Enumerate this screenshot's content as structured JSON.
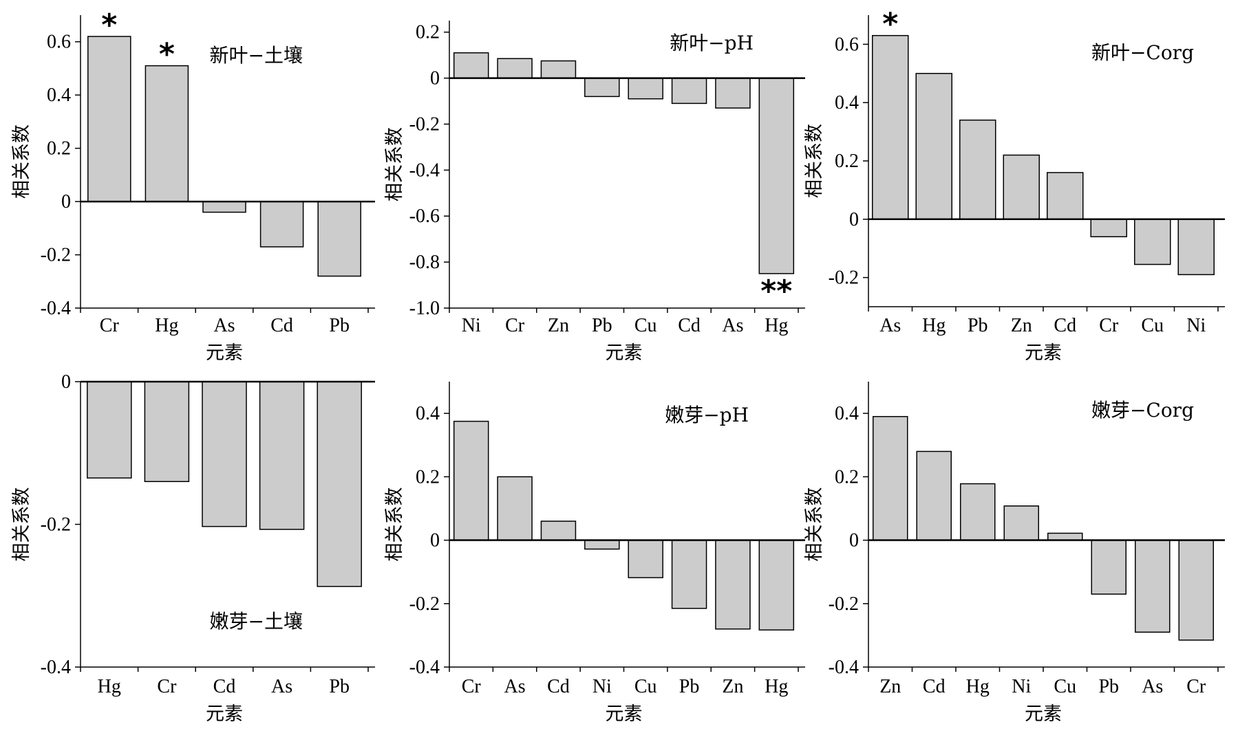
{
  "chart_data": [
    {
      "type": "bar",
      "title": "新叶−土壤",
      "xlabel": "元素",
      "ylabel": "相关系数",
      "categories": [
        "Cr",
        "Hg",
        "As",
        "Cd",
        "Pb"
      ],
      "values": [
        0.62,
        0.51,
        -0.04,
        -0.17,
        -0.28
      ],
      "significance": [
        "*",
        "*",
        "",
        "",
        ""
      ],
      "ylim": [
        -0.4,
        0.7
      ],
      "yticks": [
        -0.4,
        -0.2,
        0,
        0.2,
        0.4,
        0.6
      ],
      "ytick_labels": [
        "-0.4",
        "-0.2",
        "0",
        "0.2",
        "0.4",
        "0.6"
      ],
      "title_position": "top-right",
      "bar_color": "#cccccc",
      "grid": false
    },
    {
      "type": "bar",
      "title": "新叶−pH",
      "xlabel": "元素",
      "ylabel": "相关系数",
      "categories": [
        "Ni",
        "Cr",
        "Zn",
        "Pb",
        "Cu",
        "Cd",
        "As",
        "Hg"
      ],
      "values": [
        0.11,
        0.085,
        0.075,
        -0.08,
        -0.09,
        -0.11,
        -0.13,
        -0.85
      ],
      "significance": [
        "",
        "",
        "",
        "",
        "",
        "",
        "",
        "**"
      ],
      "ylim": [
        -1.0,
        0.25
      ],
      "yticks": [
        -1.0,
        -0.8,
        -0.6,
        -0.4,
        -0.2,
        0,
        0.2
      ],
      "ytick_labels": [
        "-1.0",
        "-0.8",
        "-0.6",
        "-0.4",
        "-0.2",
        "0",
        "0.2"
      ],
      "title_position": "top-right",
      "bar_color": "#cccccc",
      "grid": false
    },
    {
      "type": "bar",
      "title": "新叶−Corg",
      "xlabel": "元素",
      "ylabel": "相关系数",
      "categories": [
        "As",
        "Hg",
        "Pb",
        "Zn",
        "Cd",
        "Cr",
        "Cu",
        "Ni"
      ],
      "values": [
        0.63,
        0.5,
        0.34,
        0.22,
        0.16,
        -0.06,
        -0.155,
        -0.19
      ],
      "significance": [
        "*",
        "",
        "",
        "",
        "",
        "",
        "",
        ""
      ],
      "ylim": [
        -0.3,
        0.7
      ],
      "yticks": [
        -0.2,
        0,
        0.2,
        0.4,
        0.6
      ],
      "ytick_labels": [
        "-0.2",
        "0",
        "0.2",
        "0.4",
        "0.6"
      ],
      "title_position": "top-right",
      "bar_color": "#cccccc",
      "grid": false
    },
    {
      "type": "bar",
      "title": "嫩芽−土壤",
      "xlabel": "元素",
      "ylabel": "相关系数",
      "categories": [
        "Hg",
        "Cr",
        "Cd",
        "As",
        "Pb"
      ],
      "values": [
        -0.135,
        -0.14,
        -0.203,
        -0.207,
        -0.287
      ],
      "significance": [
        "",
        "",
        "",
        "",
        ""
      ],
      "ylim": [
        -0.4,
        0
      ],
      "yticks": [
        -0.4,
        -0.2,
        0
      ],
      "ytick_labels": [
        "-0.4",
        "-0.2",
        "0"
      ],
      "title_position": "bottom-right",
      "bar_color": "#cccccc",
      "grid": false
    },
    {
      "type": "bar",
      "title": "嫩芽−pH",
      "xlabel": "元素",
      "ylabel": "相关系数",
      "categories": [
        "Cr",
        "As",
        "Cd",
        "Ni",
        "Cu",
        "Pb",
        "Zn",
        "Hg"
      ],
      "values": [
        0.375,
        0.2,
        0.06,
        -0.028,
        -0.118,
        -0.215,
        -0.28,
        -0.283
      ],
      "significance": [
        "",
        "",
        "",
        "",
        "",
        "",
        "",
        ""
      ],
      "ylim": [
        -0.4,
        0.5
      ],
      "yticks": [
        -0.4,
        -0.2,
        0,
        0.2,
        0.4
      ],
      "ytick_labels": [
        "-0.4",
        "-0.2",
        "0",
        "0.2",
        "0.4"
      ],
      "title_position": "top-right",
      "bar_color": "#cccccc",
      "grid": false
    },
    {
      "type": "bar",
      "title": "嫩芽−Corg",
      "xlabel": "元素",
      "ylabel": "相关系数",
      "categories": [
        "Zn",
        "Cd",
        "Hg",
        "Ni",
        "Cu",
        "Pb",
        "As",
        "Cr"
      ],
      "values": [
        0.39,
        0.28,
        0.178,
        0.108,
        0.022,
        -0.17,
        -0.29,
        -0.315
      ],
      "significance": [
        "",
        "",
        "",
        "",
        "",
        "",
        "",
        ""
      ],
      "ylim": [
        -0.4,
        0.5
      ],
      "yticks": [
        -0.4,
        -0.2,
        0,
        0.2,
        0.4
      ],
      "ytick_labels": [
        "-0.4",
        "-0.2",
        "0",
        "0.2",
        "0.4"
      ],
      "title_position": "top-right",
      "bar_color": "#cccccc",
      "grid": false
    }
  ]
}
